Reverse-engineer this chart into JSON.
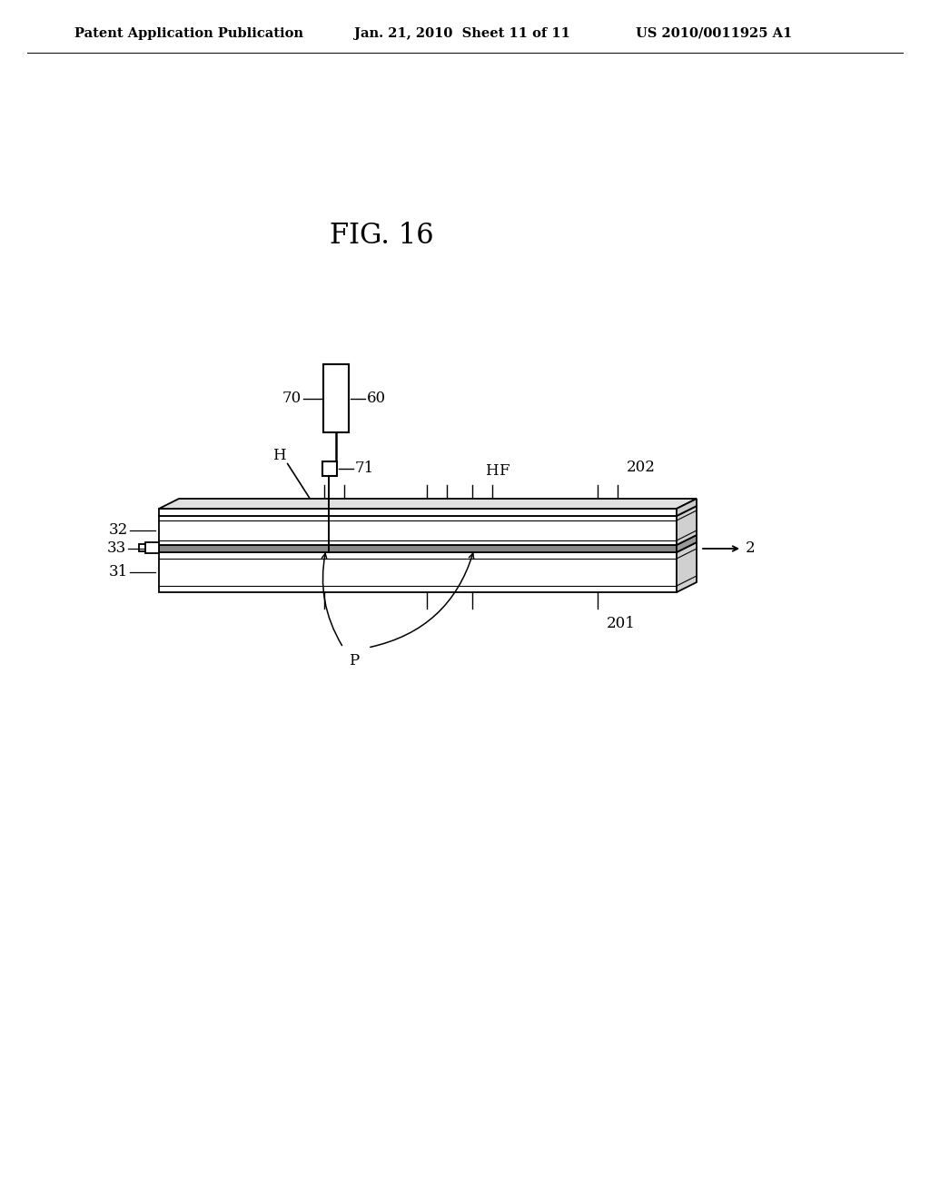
{
  "header_left": "Patent Application Publication",
  "header_center": "Jan. 21, 2010  Sheet 11 of 11",
  "header_right": "US 2010/0011925 A1",
  "title": "FIG. 16",
  "bg_color": "#ffffff",
  "lc": "#000000",
  "fig_width": 10.24,
  "fig_height": 13.2,
  "header_fontsize": 10.5,
  "title_fontsize": 22,
  "label_fontsize": 12
}
